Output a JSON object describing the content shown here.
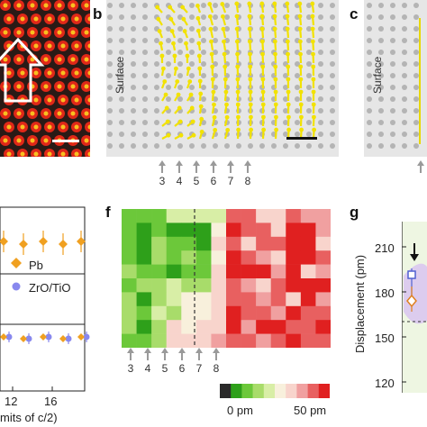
{
  "panels": {
    "b": {
      "letter": "b",
      "surface_label": "Surface",
      "layer_numbers": [
        "3",
        "4",
        "5",
        "6",
        "7",
        "8"
      ]
    },
    "c": {
      "letter": "c",
      "surface_label": "Surface"
    },
    "f": {
      "letter": "f",
      "layer_numbers": [
        "3",
        "4",
        "5",
        "6",
        "7",
        "8"
      ]
    },
    "g": {
      "letter": "g"
    }
  },
  "panel_e_partial": {
    "legend": [
      {
        "label": "Pb",
        "marker": "diamond",
        "color": "#f0a020"
      },
      {
        "label": "ZrO/TiO",
        "marker": "circle",
        "color": "#8888ee"
      }
    ],
    "x_tick_labels": [
      "12",
      "16"
    ],
    "x_axis_fragment": "mits of c/2)"
  },
  "colorbar": {
    "labels": [
      "0 pm",
      "50 pm"
    ],
    "colors": [
      "#2a2a2a",
      "#2ea01a",
      "#6cc83a",
      "#a8dc6a",
      "#d8eea6",
      "#f8f0dc",
      "#f8d4cc",
      "#f0a0a0",
      "#e86060",
      "#e02020"
    ]
  },
  "panel_g_partial": {
    "ylabel": "Displacement (pm)",
    "y_ticks": [
      "210",
      "180",
      "150",
      "120"
    ],
    "ylim": [
      120,
      225
    ]
  },
  "heatmap_f": {
    "rows": 10,
    "cols": 14,
    "divider_after_col": 5,
    "cells": [
      [
        2,
        2,
        2,
        4,
        4,
        4,
        4,
        8,
        8,
        6,
        6,
        8,
        7,
        7
      ],
      [
        2,
        1,
        2,
        1,
        1,
        1,
        5,
        9,
        8,
        8,
        6,
        9,
        9,
        7
      ],
      [
        2,
        1,
        3,
        2,
        2,
        1,
        6,
        8,
        6,
        8,
        8,
        9,
        9,
        6
      ],
      [
        2,
        1,
        3,
        2,
        3,
        2,
        5,
        9,
        8,
        7,
        6,
        9,
        9,
        8
      ],
      [
        3,
        2,
        2,
        1,
        2,
        2,
        6,
        9,
        9,
        9,
        7,
        9,
        6,
        7
      ],
      [
        2,
        3,
        3,
        4,
        3,
        3,
        6,
        8,
        7,
        6,
        8,
        9,
        9,
        9
      ],
      [
        3,
        1,
        3,
        4,
        5,
        5,
        6,
        8,
        8,
        7,
        8,
        6,
        9,
        7
      ],
      [
        3,
        2,
        4,
        3,
        5,
        5,
        6,
        9,
        8,
        8,
        7,
        9,
        8,
        8
      ],
      [
        3,
        1,
        3,
        6,
        5,
        6,
        6,
        9,
        7,
        9,
        9,
        8,
        8,
        9
      ],
      [
        2,
        2,
        3,
        6,
        6,
        6,
        7,
        8,
        8,
        7,
        8,
        9,
        8,
        8
      ]
    ]
  }
}
